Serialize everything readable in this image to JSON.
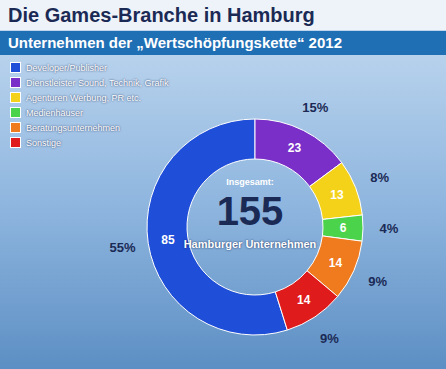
{
  "chart_data": {
    "type": "pie",
    "title": "Die Games-Branche in Hamburg",
    "subtitle": "Unternehmen der „Wertschöpfungskette“ 2012",
    "categories": [
      "Developer/Publisher",
      "Dienstleister Sound, Technik, Grafik",
      "Agenturen Werbung, PR etc.",
      "Medienhäuser",
      "Beratungsunternehmen",
      "Sonstige"
    ],
    "values": [
      85,
      23,
      13,
      6,
      14,
      14
    ],
    "colors": [
      "#1f4fd8",
      "#7a2fc8",
      "#f5d21a",
      "#4cd34c",
      "#f07a1e",
      "#e01b1b"
    ],
    "percent_labels": [
      "55%",
      "15%",
      "8%",
      "4%",
      "9%",
      "9%"
    ],
    "data_labels": true,
    "legend": "upper left",
    "center_label": "Insgesamt:",
    "total": 155,
    "center_subtitle": "Hamburger Unternehmen"
  }
}
